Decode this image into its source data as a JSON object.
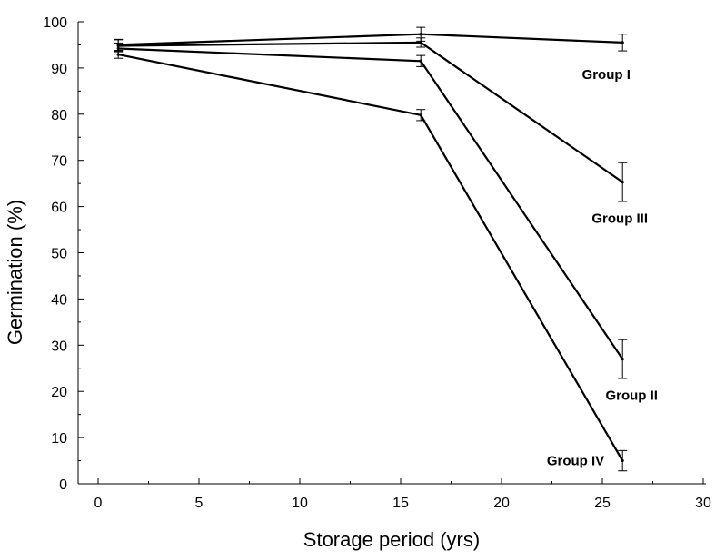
{
  "chart_data": {
    "type": "line",
    "title": "",
    "xlabel": "Storage period (yrs)",
    "ylabel": "Germination (%)",
    "xlim": [
      -1,
      30
    ],
    "ylim": [
      0,
      100
    ],
    "x_ticks": [
      0,
      5,
      10,
      15,
      20,
      25,
      30
    ],
    "y_ticks": [
      0,
      10,
      20,
      30,
      40,
      50,
      60,
      70,
      80,
      90,
      100
    ],
    "grid": false,
    "line_color": "#000000",
    "series": [
      {
        "name": "Group I",
        "x": [
          1,
          16,
          26
        ],
        "values": [
          95,
          97.3,
          95.5
        ],
        "errors": [
          1.2,
          1.5,
          1.8
        ]
      },
      {
        "name": "Group III",
        "x": [
          1,
          16,
          26
        ],
        "values": [
          94.8,
          95.5,
          65.3
        ],
        "errors": [
          1.3,
          1.0,
          4.2
        ]
      },
      {
        "name": "Group II",
        "x": [
          1,
          16,
          26
        ],
        "values": [
          94.2,
          91.5,
          27
        ],
        "errors": [
          1.2,
          1.2,
          4.2
        ]
      },
      {
        "name": "Group IV",
        "x": [
          1,
          16,
          26
        ],
        "values": [
          92.9,
          79.8,
          5
        ],
        "errors": [
          0.8,
          1.2,
          2.2
        ]
      }
    ]
  }
}
